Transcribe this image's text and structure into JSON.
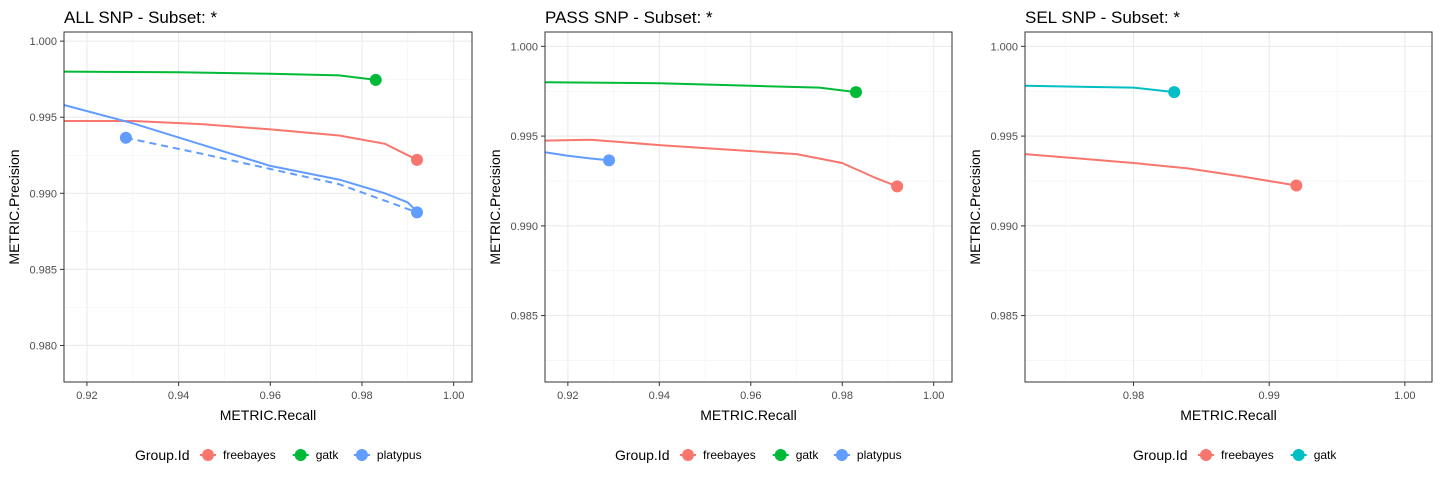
{
  "colors": {
    "freebayes": "#F8766D",
    "gatk": "#00BA38",
    "platypus": "#619CFF",
    "gatk_sel": "#00BFC4"
  },
  "chart_data": [
    {
      "type": "line",
      "title": "ALL SNP - Subset: *",
      "xlabel": "METRIC.Recall",
      "ylabel": "METRIC.Precision",
      "xlim": [
        0.915,
        1.004
      ],
      "ylim": [
        0.9776,
        1.0006
      ],
      "xticks": [
        0.92,
        0.94,
        0.96,
        0.98,
        1.0
      ],
      "xtick_labels": [
        "0.92",
        "0.94",
        "0.96",
        "0.98",
        "1.00"
      ],
      "yticks": [
        0.98,
        0.985,
        0.99,
        0.995,
        1.0
      ],
      "ytick_labels": [
        "0.980",
        "0.985",
        "0.990",
        "0.995",
        "1.000"
      ],
      "grid": true,
      "legend": {
        "title": "Group.Id",
        "position": "bottom",
        "entries": [
          {
            "name": "freebayes",
            "color": "#F8766D"
          },
          {
            "name": "gatk",
            "color": "#00BA38"
          },
          {
            "name": "platypus",
            "color": "#619CFF"
          }
        ]
      },
      "series": [
        {
          "name": "freebayes",
          "color": "#F8766D",
          "dash": false,
          "points": [
            [
              0.915,
              0.99475
            ],
            [
              0.93,
              0.99475
            ],
            [
              0.945,
              0.99455
            ],
            [
              0.96,
              0.9942
            ],
            [
              0.975,
              0.9938
            ],
            [
              0.985,
              0.99325
            ],
            [
              0.992,
              0.9922
            ]
          ],
          "marker": [
            0.992,
            0.9922
          ]
        },
        {
          "name": "gatk",
          "color": "#00BA38",
          "dash": false,
          "points": [
            [
              0.915,
              0.998
            ],
            [
              0.94,
              0.99795
            ],
            [
              0.96,
              0.99785
            ],
            [
              0.975,
              0.99775
            ],
            [
              0.983,
              0.99745
            ]
          ],
          "marker": [
            0.983,
            0.99745
          ]
        },
        {
          "name": "platypus",
          "color": "#619CFF",
          "dash": false,
          "points": [
            [
              0.915,
              0.9958
            ],
            [
              0.93,
              0.9946
            ],
            [
              0.945,
              0.9932
            ],
            [
              0.96,
              0.9918
            ],
            [
              0.975,
              0.9909
            ],
            [
              0.985,
              0.99
            ],
            [
              0.99,
              0.9894
            ],
            [
              0.992,
              0.9888
            ]
          ],
          "marker": null
        },
        {
          "name": "platypus",
          "color": "#619CFF",
          "dash": true,
          "points": [
            [
              0.9285,
              0.99365
            ],
            [
              0.945,
              0.9926
            ],
            [
              0.96,
              0.9916
            ],
            [
              0.975,
              0.9906
            ],
            [
              0.992,
              0.98875
            ]
          ],
          "marker": [
            0.9285,
            0.99365
          ],
          "end_marker": [
            0.992,
            0.98875
          ]
        }
      ]
    },
    {
      "type": "line",
      "title": "PASS SNP - Subset: *",
      "xlabel": "METRIC.Recall",
      "ylabel": "METRIC.Precision",
      "xlim": [
        0.915,
        1.004
      ],
      "ylim": [
        0.9813,
        1.0008
      ],
      "xticks": [
        0.92,
        0.94,
        0.96,
        0.98,
        1.0
      ],
      "xtick_labels": [
        "0.92",
        "0.94",
        "0.96",
        "0.98",
        "1.00"
      ],
      "yticks": [
        0.985,
        0.99,
        0.995,
        1.0
      ],
      "ytick_labels": [
        "0.985",
        "0.990",
        "0.995",
        "1.000"
      ],
      "grid": true,
      "legend": {
        "title": "Group.Id",
        "position": "bottom",
        "entries": [
          {
            "name": "freebayes",
            "color": "#F8766D"
          },
          {
            "name": "gatk",
            "color": "#00BA38"
          },
          {
            "name": "platypus",
            "color": "#619CFF"
          }
        ]
      },
      "series": [
        {
          "name": "freebayes",
          "color": "#F8766D",
          "dash": false,
          "points": [
            [
              0.915,
              0.99475
            ],
            [
              0.925,
              0.9948
            ],
            [
              0.94,
              0.9945
            ],
            [
              0.955,
              0.99425
            ],
            [
              0.97,
              0.994
            ],
            [
              0.98,
              0.9935
            ],
            [
              0.987,
              0.9927
            ],
            [
              0.992,
              0.9922
            ]
          ],
          "marker": [
            0.992,
            0.9922
          ]
        },
        {
          "name": "gatk",
          "color": "#00BA38",
          "dash": false,
          "points": [
            [
              0.915,
              0.998
            ],
            [
              0.94,
              0.99795
            ],
            [
              0.96,
              0.9978
            ],
            [
              0.975,
              0.9977
            ],
            [
              0.983,
              0.99745
            ]
          ],
          "marker": [
            0.983,
            0.99745
          ]
        },
        {
          "name": "platypus",
          "color": "#619CFF",
          "dash": false,
          "points": [
            [
              0.915,
              0.9941
            ],
            [
              0.92,
              0.9939
            ],
            [
              0.925,
              0.99375
            ],
            [
              0.929,
              0.99365
            ]
          ],
          "marker": [
            0.929,
            0.99365
          ]
        }
      ]
    },
    {
      "type": "line",
      "title": "SEL SNP - Subset: *",
      "xlabel": "METRIC.Recall",
      "ylabel": "METRIC.Precision",
      "xlim": [
        0.972,
        1.002
      ],
      "ylim": [
        0.9813,
        1.0008
      ],
      "xticks": [
        0.98,
        0.99,
        1.0
      ],
      "xtick_labels": [
        "0.98",
        "0.99",
        "1.00"
      ],
      "yticks": [
        0.985,
        0.99,
        0.995,
        1.0
      ],
      "ytick_labels": [
        "0.985",
        "0.990",
        "0.995",
        "1.000"
      ],
      "grid": true,
      "legend": {
        "title": "Group.Id",
        "position": "bottom",
        "entries": [
          {
            "name": "freebayes",
            "color": "#F8766D"
          },
          {
            "name": "gatk",
            "color": "#00BFC4"
          }
        ]
      },
      "series": [
        {
          "name": "freebayes",
          "color": "#F8766D",
          "dash": false,
          "points": [
            [
              0.972,
              0.994
            ],
            [
              0.976,
              0.99375
            ],
            [
              0.98,
              0.9935
            ],
            [
              0.984,
              0.9932
            ],
            [
              0.988,
              0.99275
            ],
            [
              0.992,
              0.99225
            ]
          ],
          "marker": [
            0.992,
            0.99225
          ]
        },
        {
          "name": "gatk",
          "color": "#00BFC4",
          "dash": false,
          "points": [
            [
              0.972,
              0.9978
            ],
            [
              0.976,
              0.99775
            ],
            [
              0.98,
              0.9977
            ],
            [
              0.983,
              0.99745
            ]
          ],
          "marker": [
            0.983,
            0.99745
          ]
        }
      ]
    }
  ]
}
